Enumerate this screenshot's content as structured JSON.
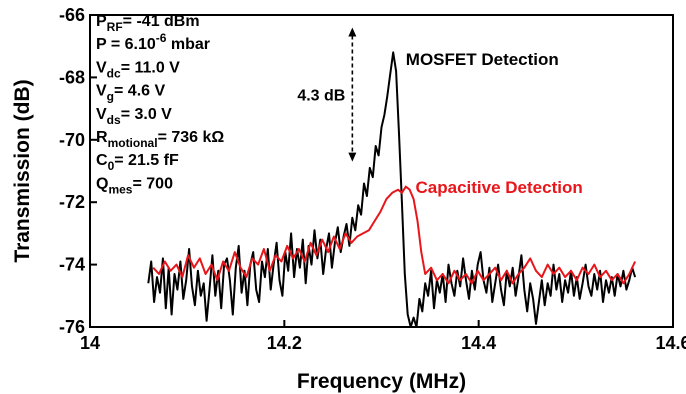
{
  "chart_data": {
    "type": "line",
    "xlabel": "Frequency (MHz)",
    "ylabel": "Transmission (dB)",
    "xlim": [
      14.0,
      14.6
    ],
    "ylim": [
      -76,
      -66
    ],
    "xticks": [
      {
        "value": 14.0,
        "label": "14"
      },
      {
        "value": 14.2,
        "label": "14.2"
      },
      {
        "value": 14.4,
        "label": "14.4"
      },
      {
        "value": 14.6,
        "label": "14.6"
      }
    ],
    "yticks": [
      {
        "value": -66,
        "label": "-66"
      },
      {
        "value": -68,
        "label": "-68"
      },
      {
        "value": -70,
        "label": "-70"
      },
      {
        "value": -72,
        "label": "-72"
      },
      {
        "value": -74,
        "label": "-74"
      },
      {
        "value": -76,
        "label": "-76"
      }
    ],
    "grid": false,
    "parameters": [
      {
        "main": "P",
        "sub": "RF",
        "rest": "= -41 dBm"
      },
      {
        "main": "P = 6.10",
        "sup": "-6",
        "rest": " mbar"
      },
      {
        "main": "V",
        "sub": "dc",
        "rest": "= 11.0 V"
      },
      {
        "main": "V",
        "sub": "g",
        "rest": "= 4.6 V"
      },
      {
        "main": "V",
        "sub": "ds",
        "rest": "= 3.0 V"
      },
      {
        "main": "R",
        "sub": "motional",
        "rest": "= 736 kΩ"
      },
      {
        "main": "C",
        "sub": "0",
        "rest": "= 21.5 fF"
      },
      {
        "main": "Q",
        "sub": "mes",
        "rest": "= 700"
      }
    ],
    "annotations": {
      "delta_label": "4.3 dB",
      "delta_arrow": {
        "x": 14.27,
        "y_top": -66.4,
        "y_bottom": -70.7
      }
    },
    "series": [
      {
        "name": "MOSFET Detection",
        "color": "#000000",
        "label_anchor": {
          "x": 14.325,
          "y": -67.6
        },
        "x": [
          14.06,
          14.063,
          14.066,
          14.069,
          14.072,
          14.075,
          14.078,
          14.081,
          14.084,
          14.087,
          14.09,
          14.093,
          14.096,
          14.099,
          14.102,
          14.105,
          14.108,
          14.111,
          14.114,
          14.117,
          14.12,
          14.123,
          14.126,
          14.129,
          14.132,
          14.135,
          14.138,
          14.141,
          14.144,
          14.147,
          14.15,
          14.153,
          14.156,
          14.159,
          14.162,
          14.165,
          14.168,
          14.171,
          14.174,
          14.177,
          14.18,
          14.183,
          14.186,
          14.189,
          14.192,
          14.195,
          14.198,
          14.201,
          14.204,
          14.207,
          14.21,
          14.213,
          14.216,
          14.219,
          14.222,
          14.225,
          14.228,
          14.231,
          14.234,
          14.237,
          14.24,
          14.243,
          14.246,
          14.249,
          14.252,
          14.255,
          14.258,
          14.261,
          14.264,
          14.267,
          14.27,
          14.273,
          14.276,
          14.279,
          14.282,
          14.285,
          14.288,
          14.291,
          14.294,
          14.297,
          14.3,
          14.303,
          14.306,
          14.309,
          14.312,
          14.315,
          14.318,
          14.321,
          14.324,
          14.327,
          14.33,
          14.333,
          14.336,
          14.339,
          14.342,
          14.345,
          14.348,
          14.351,
          14.354,
          14.357,
          14.36,
          14.363,
          14.366,
          14.369,
          14.372,
          14.375,
          14.378,
          14.381,
          14.384,
          14.387,
          14.39,
          14.393,
          14.396,
          14.399,
          14.402,
          14.405,
          14.408,
          14.411,
          14.414,
          14.417,
          14.42,
          14.423,
          14.426,
          14.429,
          14.432,
          14.435,
          14.438,
          14.441,
          14.444,
          14.447,
          14.45,
          14.453,
          14.456,
          14.459,
          14.462,
          14.465,
          14.468,
          14.471,
          14.474,
          14.477,
          14.48,
          14.483,
          14.486,
          14.489,
          14.492,
          14.495,
          14.498,
          14.501,
          14.504,
          14.507,
          14.51,
          14.513,
          14.516,
          14.519,
          14.522,
          14.525,
          14.528,
          14.531,
          14.534,
          14.537,
          14.54,
          14.543,
          14.546,
          14.549,
          14.552,
          14.555,
          14.558,
          14.561
        ],
        "y": [
          -74.6,
          -73.9,
          -75.2,
          -74.4,
          -74.9,
          -73.8,
          -75.4,
          -74.1,
          -75.6,
          -74.3,
          -74.8,
          -73.9,
          -75.1,
          -74.5,
          -73.5,
          -74.7,
          -75.3,
          -74.2,
          -75.0,
          -74.6,
          -75.8,
          -74.8,
          -73.7,
          -75.0,
          -74.2,
          -75.4,
          -74.0,
          -73.8,
          -74.5,
          -75.6,
          -74.1,
          -73.4,
          -74.9,
          -74.2,
          -75.3,
          -74.0,
          -73.6,
          -74.8,
          -75.2,
          -73.9,
          -74.4,
          -73.5,
          -74.8,
          -74.0,
          -73.3,
          -74.5,
          -75.0,
          -73.6,
          -74.2,
          -73.0,
          -74.4,
          -73.5,
          -74.1,
          -73.2,
          -74.6,
          -73.4,
          -74.0,
          -72.9,
          -73.8,
          -73.2,
          -74.3,
          -73.5,
          -73.0,
          -74.1,
          -73.3,
          -72.8,
          -73.6,
          -73.1,
          -72.7,
          -73.4,
          -72.5,
          -72.9,
          -72.1,
          -72.4,
          -71.4,
          -71.8,
          -70.9,
          -71.2,
          -70.2,
          -70.5,
          -69.6,
          -69.2,
          -68.6,
          -67.9,
          -67.2,
          -67.8,
          -69.8,
          -72.0,
          -74.3,
          -75.6,
          -76.0,
          -75.7,
          -76.0,
          -75.1,
          -75.5,
          -74.6,
          -75.0,
          -74.2,
          -75.4,
          -74.5,
          -74.9,
          -74.3,
          -75.2,
          -74.0,
          -74.6,
          -75.0,
          -74.2,
          -74.7,
          -73.8,
          -74.5,
          -75.1,
          -74.2,
          -74.8,
          -74.0,
          -73.6,
          -74.5,
          -74.9,
          -74.1,
          -75.2,
          -74.6,
          -74.0,
          -74.8,
          -75.3,
          -74.2,
          -74.7,
          -74.1,
          -75.0,
          -74.4,
          -73.7,
          -74.8,
          -75.5,
          -74.6,
          -75.1,
          -75.9,
          -75.2,
          -74.5,
          -75.3,
          -74.6,
          -75.0,
          -74.0,
          -74.8,
          -74.3,
          -75.2,
          -74.5,
          -74.9,
          -74.2,
          -75.0,
          -74.4,
          -75.1,
          -74.6,
          -74.0,
          -74.7,
          -75.0,
          -74.3,
          -74.8,
          -74.2,
          -75.2,
          -74.5,
          -74.9,
          -74.4,
          -75.0,
          -74.3,
          -74.7,
          -74.2,
          -74.8,
          -74.5,
          -74.1,
          -74.4
        ]
      },
      {
        "name": "Capacitive Detection",
        "color": "#e8161b",
        "label_anchor": {
          "x": 14.335,
          "y": -71.7
        },
        "x": [
          14.065,
          14.071,
          14.077,
          14.083,
          14.089,
          14.095,
          14.101,
          14.107,
          14.113,
          14.119,
          14.125,
          14.131,
          14.137,
          14.143,
          14.149,
          14.155,
          14.161,
          14.167,
          14.173,
          14.179,
          14.185,
          14.191,
          14.197,
          14.203,
          14.209,
          14.215,
          14.221,
          14.227,
          14.233,
          14.239,
          14.245,
          14.251,
          14.257,
          14.263,
          14.269,
          14.275,
          14.281,
          14.287,
          14.293,
          14.299,
          14.305,
          14.311,
          14.317,
          14.321,
          14.325,
          14.329,
          14.333,
          14.337,
          14.341,
          14.345,
          14.351,
          14.357,
          14.363,
          14.369,
          14.375,
          14.381,
          14.387,
          14.393,
          14.399,
          14.405,
          14.411,
          14.417,
          14.423,
          14.429,
          14.435,
          14.441,
          14.447,
          14.453,
          14.459,
          14.465,
          14.471,
          14.477,
          14.483,
          14.489,
          14.495,
          14.501,
          14.507,
          14.513,
          14.519,
          14.525,
          14.531,
          14.537,
          14.543,
          14.549,
          14.555,
          14.561
        ],
        "y": [
          -74.1,
          -74.3,
          -73.9,
          -74.2,
          -74.0,
          -74.4,
          -73.7,
          -74.1,
          -73.8,
          -74.3,
          -74.0,
          -74.5,
          -73.9,
          -74.2,
          -73.6,
          -74.1,
          -74.4,
          -73.8,
          -74.0,
          -73.5,
          -74.2,
          -73.7,
          -73.9,
          -73.4,
          -73.8,
          -73.5,
          -73.9,
          -73.3,
          -73.7,
          -73.2,
          -73.6,
          -73.1,
          -73.5,
          -73.0,
          -73.3,
          -73.1,
          -73.0,
          -72.9,
          -72.6,
          -72.3,
          -71.9,
          -71.7,
          -71.6,
          -71.7,
          -71.5,
          -71.6,
          -71.9,
          -72.6,
          -73.6,
          -74.3,
          -74.1,
          -74.5,
          -74.3,
          -74.6,
          -74.2,
          -74.5,
          -74.3,
          -74.6,
          -74.2,
          -74.5,
          -74.3,
          -74.1,
          -74.5,
          -74.2,
          -74.6,
          -74.3,
          -74.1,
          -73.8,
          -74.2,
          -74.4,
          -74.0,
          -74.3,
          -74.1,
          -74.4,
          -74.2,
          -74.5,
          -74.1,
          -74.3,
          -74.0,
          -74.4,
          -74.2,
          -74.5,
          -74.3,
          -74.6,
          -74.3,
          -73.9
        ]
      }
    ]
  }
}
